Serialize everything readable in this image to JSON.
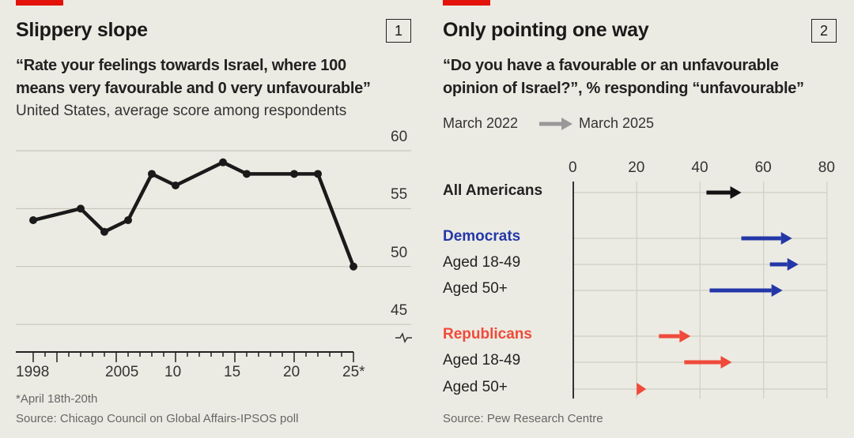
{
  "chart_data": [
    {
      "type": "line",
      "panel_number": "1",
      "title": "Slippery slope",
      "subtitle": "“Rate your feelings towards Israel, where 100 means very favourable and 0 very unfavourable”",
      "subtitle2": "United States, average score among respondents",
      "x": [
        1998,
        2002,
        2004,
        2006,
        2008,
        2010,
        2014,
        2016,
        2020,
        2022,
        2025
      ],
      "values": [
        54,
        55,
        53,
        54,
        58,
        57,
        59,
        58,
        58,
        58,
        50
      ],
      "ylim": [
        45,
        60
      ],
      "yticks": [
        "60",
        "55",
        "50",
        "45"
      ],
      "xticks": [
        {
          "v": 1998,
          "label": "1998"
        },
        {
          "v": 2005,
          "label": "2005"
        },
        {
          "v": 2010,
          "label": "10"
        },
        {
          "v": 2015,
          "label": "15"
        },
        {
          "v": 2020,
          "label": "20"
        },
        {
          "v": 2025,
          "label": "25*"
        }
      ],
      "xlim": [
        1998,
        2025
      ],
      "footnote": "*April 18th-20th",
      "source": "Source: Chicago Council on Global Affairs-IPSOS poll"
    },
    {
      "type": "arrow",
      "panel_number": "2",
      "title": "Only pointing one way",
      "subtitle": "“Do you have a favourable or an unfavourable opinion of Israel?”, % responding “unfavourable”",
      "legend": {
        "from": "March 2022",
        "to": "March 2025"
      },
      "xlim": [
        0,
        80
      ],
      "xticks": [
        "0",
        "20",
        "40",
        "60",
        "80"
      ],
      "rows": [
        {
          "label": "All Americans",
          "start": 42,
          "end": 53,
          "color": "#111111",
          "style": "bold"
        },
        {
          "label": "Democrats",
          "start": 53,
          "end": 69,
          "color": "#2437a8",
          "style": "header"
        },
        {
          "label": "Aged 18-49",
          "start": 62,
          "end": 71,
          "color": "#2437a8",
          "style": "normal"
        },
        {
          "label": "Aged 50+",
          "start": 43,
          "end": 66,
          "color": "#2437a8",
          "style": "normal"
        },
        {
          "label": "Republicans",
          "start": 27,
          "end": 37,
          "color": "#f04a3a",
          "style": "header"
        },
        {
          "label": "Aged 18-49",
          "start": 35,
          "end": 50,
          "color": "#f04a3a",
          "style": "normal"
        },
        {
          "label": "Aged 50+",
          "start": 20,
          "end": 23,
          "color": "#f04a3a",
          "style": "normal"
        }
      ],
      "source": "Source: Pew Research Centre"
    }
  ]
}
